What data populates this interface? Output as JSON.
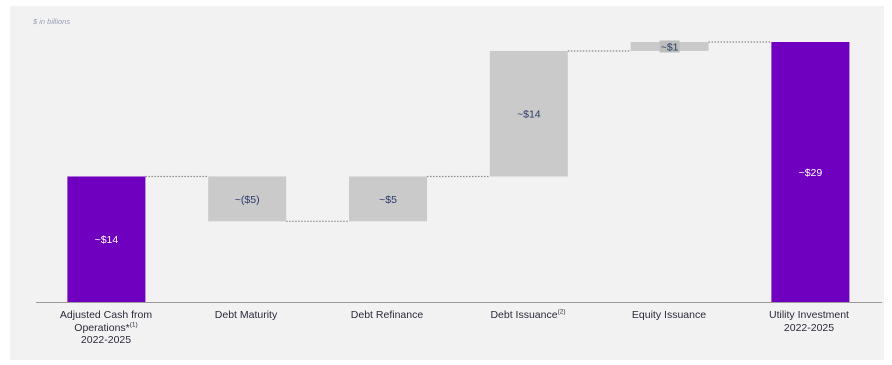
{
  "note": "$ in billions",
  "colors": {
    "total": "#7000c0",
    "step": "#cacaca",
    "total_text": "#ffffff",
    "step_text": "#2a3a6a",
    "connector": "#8a8a8a",
    "axis": "#9a9a9a"
  },
  "chart_data": {
    "type": "waterfall",
    "title": "",
    "unit": "$ in billions",
    "ylim": [
      0,
      29
    ],
    "grid": false,
    "legend": "none",
    "bars": [
      {
        "category": "Adjusted Cash from Operations*(1) 2022-2025",
        "start": 0,
        "end": 14,
        "value": 14,
        "kind": "total",
        "label": "~$14"
      },
      {
        "category": "Debt Maturity",
        "start": 14,
        "end": 9,
        "value": -5,
        "kind": "step",
        "label": "~($5)"
      },
      {
        "category": "Debt Refinance",
        "start": 9,
        "end": 14,
        "value": 5,
        "kind": "step",
        "label": "~$5"
      },
      {
        "category": "Debt Issuance(2)",
        "start": 14,
        "end": 28,
        "value": 14,
        "kind": "step",
        "label": "~$14"
      },
      {
        "category": "Equity Issuance",
        "start": 28,
        "end": 29,
        "value": 1,
        "kind": "step",
        "label": "~$1"
      },
      {
        "category": "Utility Investment 2022-2025",
        "start": 0,
        "end": 29,
        "value": 29,
        "kind": "total",
        "label": "~$29"
      }
    ]
  },
  "xlabels": {
    "cash": {
      "line1": "Adjusted Cash from",
      "line2": "Operations*",
      "sup": "(1)",
      "line3": "2022-2025"
    },
    "maturity": "Debt Maturity",
    "refinance": "Debt Refinance",
    "issuance": {
      "text": "Debt Issuance",
      "sup": "(2)"
    },
    "equity": "Equity Issuance",
    "utility": {
      "line1": "Utility Investment",
      "line2": "2022-2025"
    }
  }
}
